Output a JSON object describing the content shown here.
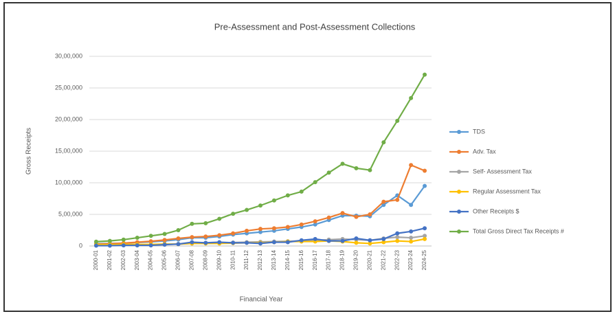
{
  "chart_data": {
    "type": "line",
    "title": "Pre-Assessment and Post-Assessment Collections",
    "x_label": "Financial Year",
    "y_label": "Gross Receipts",
    "categories": [
      "2000-01",
      "2001-02",
      "2002-03",
      "2003-04",
      "2004-05",
      "2005-06",
      "2006-07",
      "2007-08",
      "2008-09",
      "2009-10",
      "2010-11",
      "2011-12",
      "2012-13",
      "2013-14",
      "2014-15",
      "2015-16",
      "2016-17",
      "2017-18",
      "2018-19",
      "2019-20",
      "2020-21",
      "2021-22",
      "2022-23",
      "2023-24",
      "2024-25"
    ],
    "ylim": [
      0,
      3000000
    ],
    "yticks": [
      0,
      {
        "value": 500000,
        "label": "5,00,000"
      },
      {
        "value": 1000000,
        "label": "10,00,000"
      },
      {
        "value": 1500000,
        "label": "15,00,000"
      },
      {
        "value": 2000000,
        "label": "20,00,000"
      },
      {
        "value": 2500000,
        "label": "25,00,000"
      },
      {
        "value": 3000000,
        "label": "30,00,000"
      }
    ],
    "grid": true,
    "legend": "right",
    "series": [
      {
        "name": "TDS",
        "color": "#5b9bd5",
        "values": [
          35000,
          40000,
          45000,
          55000,
          65000,
          80000,
          100000,
          130000,
          130000,
          150000,
          180000,
          200000,
          220000,
          240000,
          270000,
          300000,
          340000,
          410000,
          480000,
          480000,
          470000,
          650000,
          800000,
          650000,
          950000
        ]
      },
      {
        "name": "Adv. Tax",
        "color": "#ed7d31",
        "values": [
          30000,
          35000,
          45000,
          60000,
          75000,
          95000,
          120000,
          140000,
          150000,
          170000,
          200000,
          240000,
          270000,
          280000,
          300000,
          340000,
          390000,
          450000,
          520000,
          460000,
          500000,
          700000,
          730000,
          1280000,
          1190000
        ]
      },
      {
        "name": "Self- Assessment Tax",
        "color": "#a5a5a5",
        "values": [
          10000,
          12000,
          15000,
          18000,
          20000,
          25000,
          30000,
          40000,
          45000,
          50000,
          55000,
          60000,
          65000,
          70000,
          75000,
          80000,
          90000,
          100000,
          110000,
          100000,
          90000,
          120000,
          140000,
          130000,
          160000
        ]
      },
      {
        "name": "Regular Assessment Tax",
        "color": "#ffc000",
        "values": [
          20000,
          20000,
          25000,
          25000,
          25000,
          30000,
          30000,
          40000,
          40000,
          40000,
          45000,
          50000,
          50000,
          60000,
          70000,
          70000,
          70000,
          80000,
          70000,
          50000,
          40000,
          60000,
          80000,
          70000,
          110000
        ]
      },
      {
        "name": "Other Receipts $",
        "color": "#4472c4",
        "values": [
          5000,
          5000,
          10000,
          10000,
          10000,
          20000,
          30000,
          60000,
          50000,
          60000,
          50000,
          50000,
          40000,
          60000,
          60000,
          90000,
          110000,
          80000,
          80000,
          120000,
          90000,
          110000,
          200000,
          230000,
          280000
        ]
      },
      {
        "name": "Total Gross Direct Tax Receipts #",
        "color": "#70ad47",
        "values": [
          68000,
          80000,
          100000,
          130000,
          160000,
          190000,
          250000,
          350000,
          360000,
          430000,
          510000,
          570000,
          640000,
          720000,
          800000,
          860000,
          1010000,
          1160000,
          1300000,
          1230000,
          1200000,
          1640000,
          1980000,
          2340000,
          2710000
        ]
      }
    ]
  }
}
